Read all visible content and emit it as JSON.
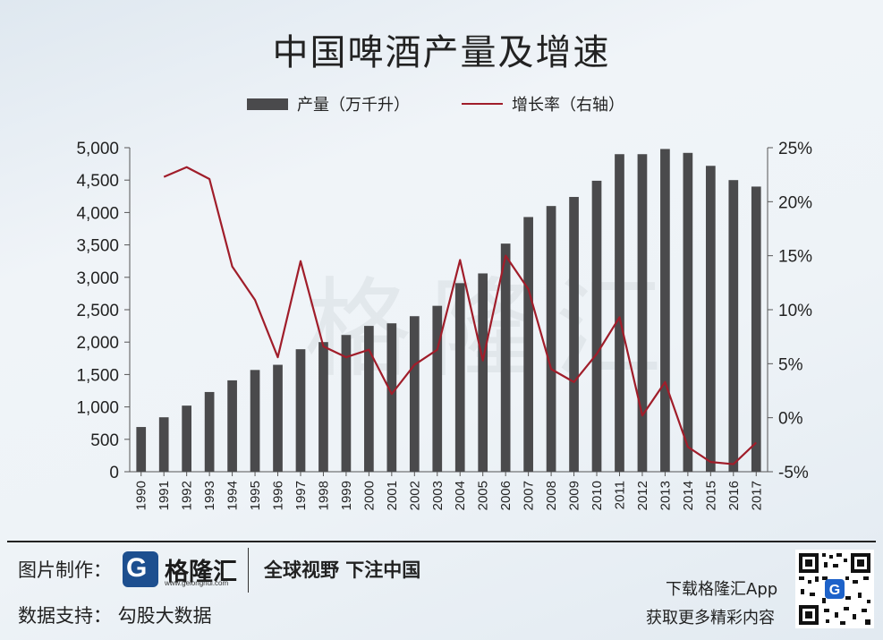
{
  "title": "中国啤酒产量及增速",
  "legend": {
    "bar_label": "产量（万千升）",
    "line_label": "增长率（右轴）"
  },
  "colors": {
    "bar": "#4a4a4c",
    "line": "#a01d2a",
    "axis": "#555555"
  },
  "chart_data": {
    "type": "bar",
    "categories": [
      "1990",
      "1991",
      "1992",
      "1993",
      "1994",
      "1995",
      "1996",
      "1997",
      "1998",
      "1999",
      "2000",
      "2001",
      "2002",
      "2003",
      "2004",
      "2005",
      "2006",
      "2007",
      "2008",
      "2009",
      "2010",
      "2011",
      "2012",
      "2013",
      "2014",
      "2015",
      "2016",
      "2017"
    ],
    "series": [
      {
        "name": "产量（万千升）",
        "type": "bar",
        "axis": "left",
        "values": [
          690,
          840,
          1020,
          1230,
          1410,
          1570,
          1650,
          1890,
          2000,
          2110,
          2250,
          2290,
          2400,
          2560,
          2910,
          3060,
          3520,
          3930,
          4100,
          4240,
          4490,
          4900,
          4900,
          4980,
          4920,
          4720,
          4500,
          4400
        ]
      },
      {
        "name": "增长率（右轴）",
        "type": "line",
        "axis": "right",
        "x": [
          "1991",
          "1992",
          "1993",
          "1994",
          "1995",
          "1996",
          "1997",
          "1998",
          "1999",
          "2000",
          "2001",
          "2002",
          "2003",
          "2004",
          "2005",
          "2006",
          "2007",
          "2008",
          "2009",
          "2010",
          "2011",
          "2012",
          "2013",
          "2014",
          "2015",
          "2016",
          "2017"
        ],
        "values": [
          22.3,
          23.2,
          22.1,
          14.0,
          10.9,
          5.6,
          14.5,
          6.6,
          5.6,
          6.3,
          2.2,
          4.9,
          6.3,
          14.6,
          5.3,
          15.0,
          11.9,
          4.5,
          3.3,
          5.9,
          9.3,
          0.2,
          3.3,
          -2.7,
          -4.1,
          -4.3,
          -2.3
        ]
      }
    ],
    "y_left": {
      "ylim": [
        0,
        5000
      ],
      "ticks": [
        "0",
        "500",
        "1,000",
        "1,500",
        "2,000",
        "2,500",
        "3,000",
        "3,500",
        "4,000",
        "4,500",
        "5,000"
      ]
    },
    "y_right": {
      "ylim": [
        -5,
        25
      ],
      "ticks": [
        "-5%",
        "0%",
        "5%",
        "10%",
        "15%",
        "20%",
        "25%"
      ]
    },
    "legend_position": "top-center",
    "grid": false
  },
  "watermark": "格隆汇",
  "footer": {
    "made_by_label": "图片制作：",
    "logo_name": "格隆汇",
    "logo_url": "www.gelonghui.com",
    "slogan": "全球视野 下注中国",
    "data_support": "数据支持：  勾股大数据",
    "download": "下载格隆汇App",
    "more": "获取更多精彩内容",
    "qr_icon": "qr-code-icon"
  }
}
